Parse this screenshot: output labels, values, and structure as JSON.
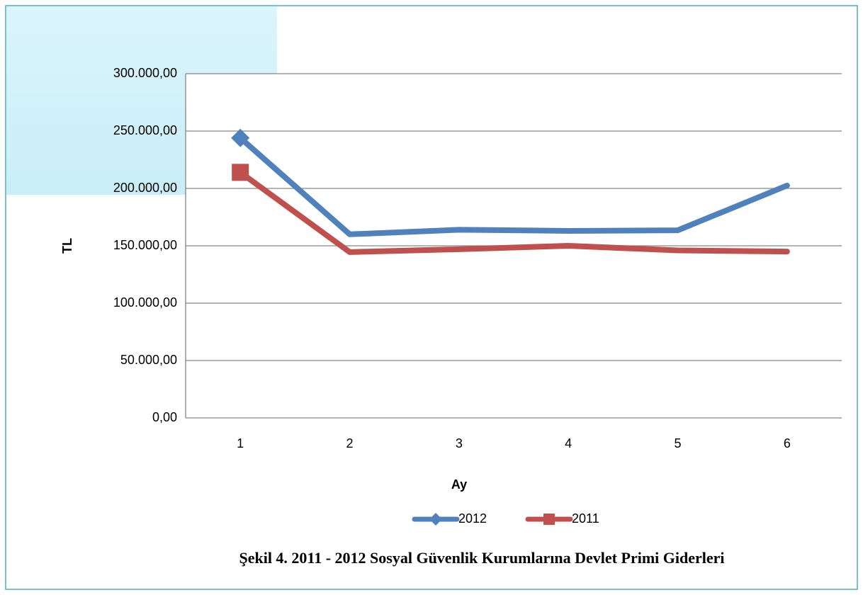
{
  "chart_data": {
    "type": "line",
    "caption": "Şekil 4. 2011 - 2012 Sosyal Güvenlik Kurumlarına Devlet Primi  Giderleri",
    "x_label": "Ay",
    "y_label": "TL",
    "categories": [
      "1",
      "2",
      "3",
      "4",
      "5",
      "6"
    ],
    "series": [
      {
        "name": "2012",
        "color": "#4f81bd",
        "marker": "diamond",
        "values": [
          244000,
          160000,
          164000,
          163000,
          163500,
          202500
        ]
      },
      {
        "name": "2011",
        "color": "#c0504d",
        "marker": "square",
        "values": [
          214000,
          144500,
          147000,
          150000,
          146000,
          145000
        ]
      }
    ],
    "ylim": [
      0,
      300000
    ],
    "yticks": [
      {
        "value": 0,
        "label": "0,00"
      },
      {
        "value": 50000,
        "label": "50.000,00"
      },
      {
        "value": 100000,
        "label": "100.000,00"
      },
      {
        "value": 150000,
        "label": "150.000,00"
      },
      {
        "value": 200000,
        "label": "200.000,00"
      },
      {
        "value": 250000,
        "label": "250.000,00"
      },
      {
        "value": 300000,
        "label": "300.000,00"
      }
    ],
    "grid": true,
    "legend": "bottom"
  }
}
